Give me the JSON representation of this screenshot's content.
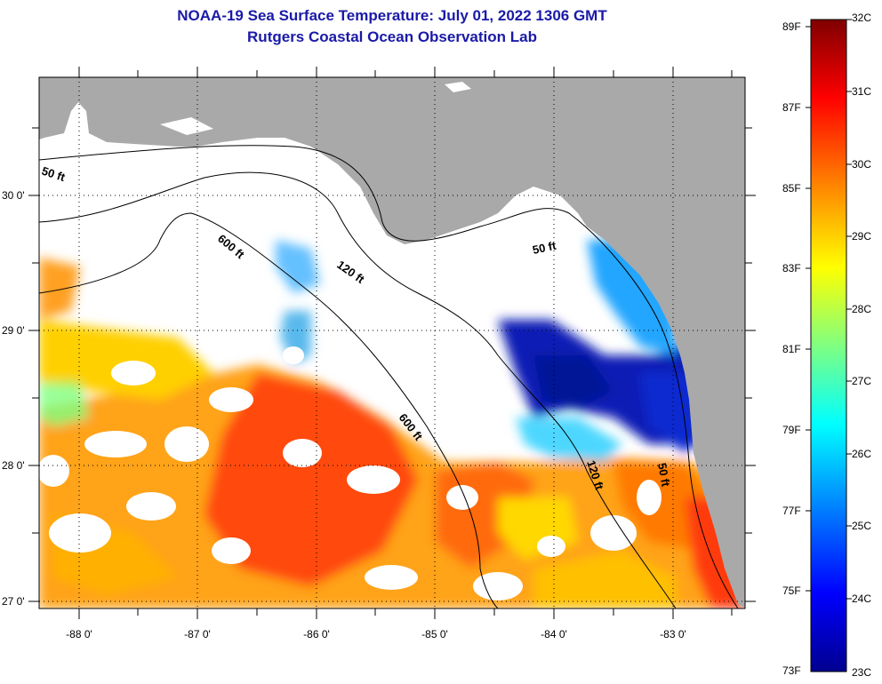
{
  "header": {
    "title_line1": "NOAA-19 Sea Surface Temperature:  July 01, 2022 1306 GMT",
    "title_line2": "Rutgers Coastal Ocean Observation Lab"
  },
  "map": {
    "lon_labels": [
      "-88 0'",
      "-87 0'",
      "-86 0'",
      "-85 0'",
      "-84 0'",
      "-83 0'"
    ],
    "lat_labels": [
      "30 0'",
      "29 0'",
      "28 0'",
      "27 0'"
    ],
    "contours": [
      "50 ft",
      "600 ft",
      "120 ft",
      "600 ft",
      "50 ft",
      "120 ft",
      "50 ft"
    ],
    "colors": {
      "land": "#a9a9a9",
      "nodata": "#ffffff",
      "frame": "#000000"
    }
  },
  "colorbar": {
    "fahrenheit": [
      "89F",
      "87F",
      "85F",
      "83F",
      "81F",
      "79F",
      "77F",
      "75F",
      "73F"
    ],
    "celsius": [
      "32C",
      "31C",
      "30C",
      "29C",
      "28C",
      "27C",
      "26C",
      "25C",
      "24C",
      "23C"
    ],
    "stops": [
      "#7f0000",
      "#ff0000",
      "#ff8000",
      "#ffff00",
      "#80ff80",
      "#00ffff",
      "#0080ff",
      "#0000ff",
      "#00008f"
    ]
  }
}
